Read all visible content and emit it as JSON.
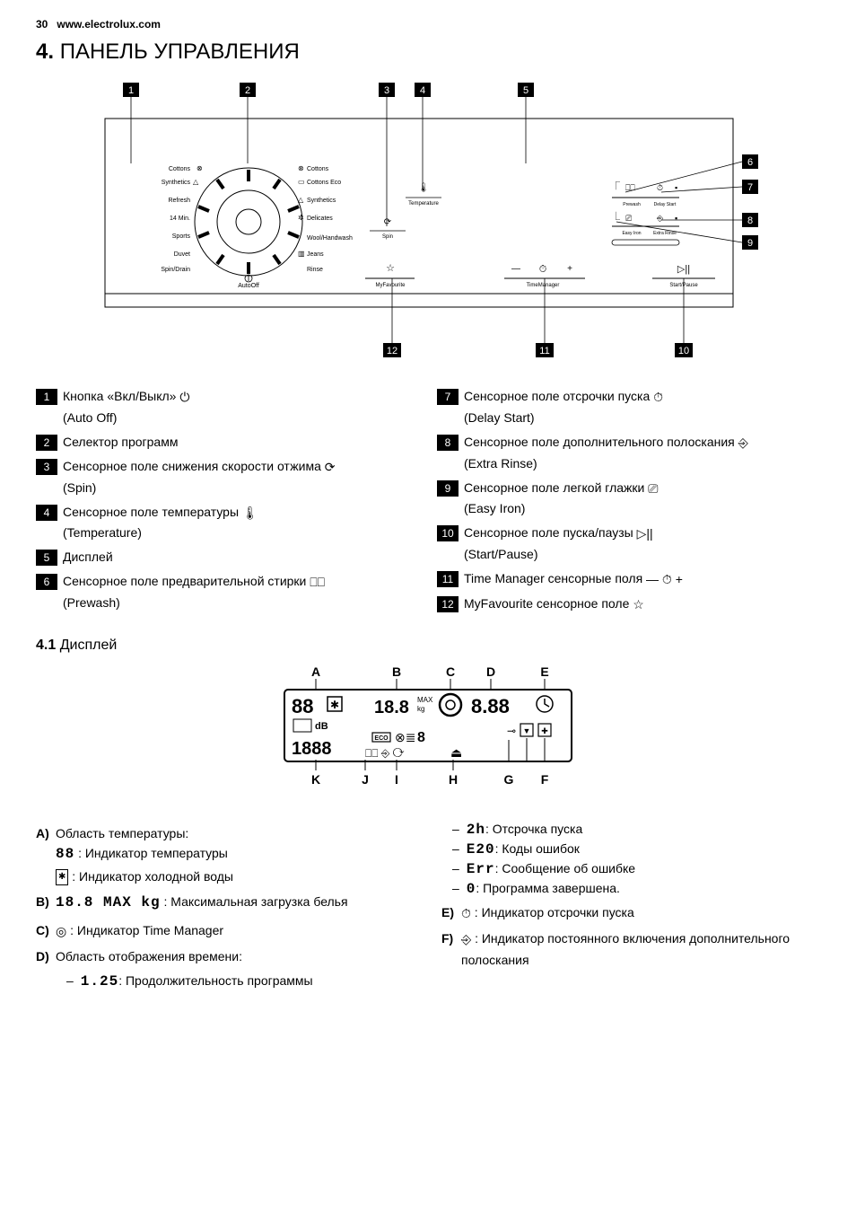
{
  "header": {
    "page_number": "30",
    "url": "www.electrolux.com"
  },
  "section": {
    "number": "4.",
    "title": "ПАНЕЛЬ УПРАВЛЕНИЯ"
  },
  "dial_labels": {
    "left": [
      "Cottons",
      "Synthetics",
      "Refresh",
      "14 Min.",
      "Sports",
      "Duvet",
      "Spin/Drain"
    ],
    "right": [
      "Cottons",
      "Cottons Eco",
      "Synthetics",
      "Delicates",
      "Wool/Handwash",
      "Jeans",
      "Rinse"
    ],
    "bottom": "AutoOff"
  },
  "panel_buttons": {
    "temperature": "Temperature",
    "spin": "Spin",
    "myfavourite": "MyFavourite",
    "timemanager": "TimeManager",
    "startpause": "Start/Pause",
    "prewash": "Prewash",
    "delaystart": "Delay Start",
    "easyiron": "Easy Iron",
    "extrarinse": "Extra Rinse"
  },
  "legend": [
    {
      "n": "1",
      "ru": "Кнопка «Вкл/Выкл»",
      "icon": "⏻",
      "en": "(Auto Off)"
    },
    {
      "n": "2",
      "ru": "Селектор программ",
      "icon": "",
      "en": ""
    },
    {
      "n": "3",
      "ru": "Сенсорное поле снижения скорости отжима",
      "icon": "⟳",
      "en": "(Spin)"
    },
    {
      "n": "4",
      "ru": "Сенсорное поле температуры",
      "icon": "🌡",
      "en": "(Temperature)"
    },
    {
      "n": "5",
      "ru": "Дисплей",
      "icon": "",
      "en": ""
    },
    {
      "n": "6",
      "ru": "Сенсорное поле предварительной стирки",
      "icon": "⎕⎕",
      "en": "(Prewash)"
    },
    {
      "n": "7",
      "ru": "Сенсорное поле отсрочки пуска",
      "icon": "⏱",
      "en": "(Delay Start)"
    },
    {
      "n": "8",
      "ru": "Сенсорное поле дополнительного полоскания",
      "icon": "⎆",
      "en": "(Extra Rinse)"
    },
    {
      "n": "9",
      "ru": "Сенсорное поле легкой глажки",
      "icon": "⎚",
      "en": "(Easy Iron)"
    },
    {
      "n": "10",
      "ru": "Сенсорное поле пуска/паузы",
      "icon": "▷||",
      "en": "(Start/Pause)"
    },
    {
      "n": "11",
      "ru": "Time Manager сенсорные поля",
      "icon": "— ⏱ +",
      "en": ""
    },
    {
      "n": "12",
      "ru": "MyFavourite сенсорное поле",
      "icon": "☆",
      "en": ""
    }
  ],
  "subsection": {
    "number": "4.1",
    "title": "Дисплей"
  },
  "display_labels": [
    "A",
    "B",
    "C",
    "D",
    "E",
    "F",
    "G",
    "H",
    "I",
    "J",
    "K"
  ],
  "descriptions_left": [
    {
      "letter": "A)",
      "title": "Область температуры:",
      "items": [
        {
          "icon": "88",
          "text": ": Индикатор температуры",
          "seg": true
        },
        {
          "icon": "✱",
          "text": ": Индикатор холодной воды",
          "boxed": true
        }
      ]
    },
    {
      "letter": "B)",
      "title": "",
      "items": [
        {
          "icon": "18.8 MAX kg",
          "text": ": Максимальная загрузка белья",
          "seg": true
        }
      ]
    },
    {
      "letter": "C)",
      "title": "",
      "items": [
        {
          "icon": "◎",
          "text": ": Индикатор Time Manager"
        }
      ]
    },
    {
      "letter": "D)",
      "title": "Область отображения времени:",
      "items": [
        {
          "icon": "1.25",
          "text": ": Продолжительность программы",
          "seg": true,
          "dash": true
        }
      ]
    }
  ],
  "descriptions_right_top": [
    {
      "icon": "2h",
      "text": ": Отсрочка пуска",
      "seg": true
    },
    {
      "icon": "E20",
      "text": ": Коды ошибок",
      "seg": true
    },
    {
      "icon": "Err",
      "text": ": Сообщение об ошибке",
      "seg": true
    },
    {
      "icon": "0",
      "text": ": Программа завершена.",
      "seg": true
    }
  ],
  "descriptions_right_items": [
    {
      "letter": "E)",
      "icon": "⏱",
      "text": ": Индикатор отсрочки пуска"
    },
    {
      "letter": "F)",
      "icon": "⎆",
      "text": ": Индикатор постоянного включения дополнительного полоскания"
    }
  ]
}
